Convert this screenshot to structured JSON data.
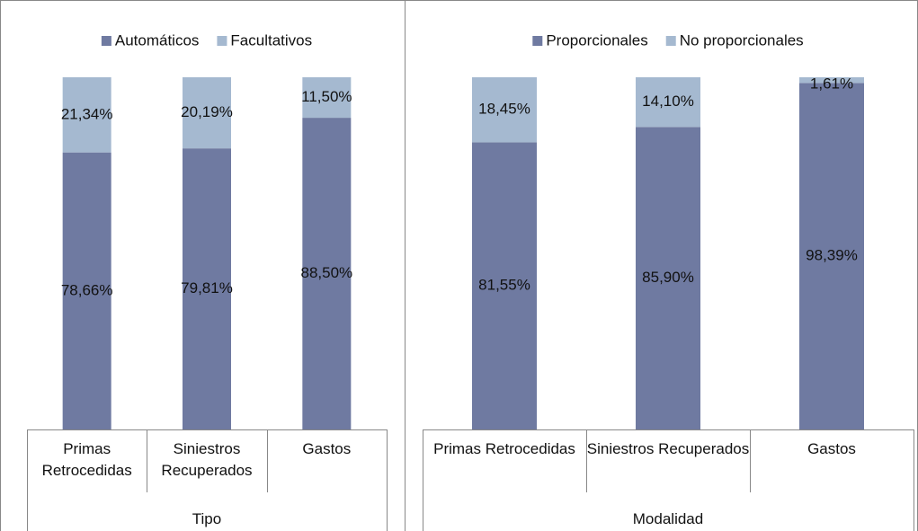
{
  "chart_data": [
    {
      "type": "bar",
      "stacked": true,
      "categories": [
        "Primas Retrocedidas",
        "Siniestros Recuperados",
        "Gastos"
      ],
      "xlabel": "Tipo",
      "series": [
        {
          "name": "Automáticos",
          "color": "#6f7aa1",
          "values": [
            78.66,
            79.81,
            88.5
          ],
          "value_labels": [
            "78,66%",
            "79,81%",
            "88,50%"
          ]
        },
        {
          "name": "Facultativos",
          "color": "#a5b9d0",
          "values": [
            21.34,
            20.19,
            11.5
          ],
          "value_labels": [
            "21,34%",
            "20,19%",
            "11,50%"
          ]
        }
      ],
      "ylim": [
        0,
        100
      ],
      "legend": "top"
    },
    {
      "type": "bar",
      "stacked": true,
      "categories": [
        "Primas Retrocedidas",
        "Siniestros Recuperados",
        "Gastos"
      ],
      "xlabel": "Modalidad",
      "series": [
        {
          "name": "Proporcionales",
          "color": "#6f7aa1",
          "values": [
            81.55,
            85.9,
            98.39
          ],
          "value_labels": [
            "81,55%",
            "85,90%",
            "98,39%"
          ]
        },
        {
          "name": "No proporcionales",
          "color": "#a5b9d0",
          "values": [
            18.45,
            14.1,
            1.61
          ],
          "value_labels": [
            "18,45%",
            "14,10%",
            "1,61%"
          ]
        }
      ],
      "ylim": [
        0,
        100
      ],
      "legend": "top"
    }
  ]
}
